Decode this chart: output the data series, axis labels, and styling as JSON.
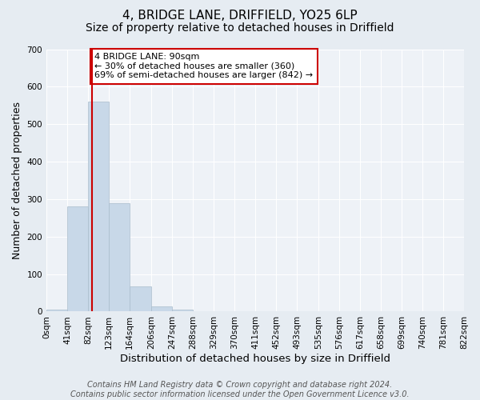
{
  "title": "4, BRIDGE LANE, DRIFFIELD, YO25 6LP",
  "subtitle": "Size of property relative to detached houses in Driffield",
  "xlabel": "Distribution of detached houses by size in Driffield",
  "ylabel": "Number of detached properties",
  "bar_edges": [
    0,
    41,
    82,
    123,
    164,
    206,
    247,
    288,
    329,
    370,
    411,
    452,
    493,
    535,
    576,
    617,
    658,
    699,
    740,
    781,
    822
  ],
  "bar_heights": [
    5,
    280,
    560,
    290,
    68,
    14,
    6,
    0,
    0,
    0,
    0,
    0,
    0,
    0,
    0,
    0,
    0,
    0,
    0,
    0
  ],
  "bar_color": "#c8d8e8",
  "bar_edgecolor": "#aabccc",
  "ylim": [
    0,
    700
  ],
  "yticks": [
    0,
    100,
    200,
    300,
    400,
    500,
    600,
    700
  ],
  "property_size": 90,
  "vline_color": "#cc0000",
  "annotation_text": "4 BRIDGE LANE: 90sqm\n← 30% of detached houses are smaller (360)\n69% of semi-detached houses are larger (842) →",
  "annotation_box_color": "#cc0000",
  "annotation_bg": "#ffffff",
  "tick_labels": [
    "0sqm",
    "41sqm",
    "82sqm",
    "123sqm",
    "164sqm",
    "206sqm",
    "247sqm",
    "288sqm",
    "329sqm",
    "370sqm",
    "411sqm",
    "452sqm",
    "493sqm",
    "535sqm",
    "576sqm",
    "617sqm",
    "658sqm",
    "699sqm",
    "740sqm",
    "781sqm",
    "822sqm"
  ],
  "footer_line1": "Contains HM Land Registry data © Crown copyright and database right 2024.",
  "footer_line2": "Contains public sector information licensed under the Open Government Licence v3.0.",
  "bg_color": "#e6ecf2",
  "plot_bg_color": "#eef2f7",
  "title_fontsize": 11,
  "subtitle_fontsize": 10,
  "axis_label_fontsize": 9.5,
  "tick_fontsize": 7.5,
  "footer_fontsize": 7,
  "annotation_fontsize": 8,
  "ylabel_fontsize": 9
}
